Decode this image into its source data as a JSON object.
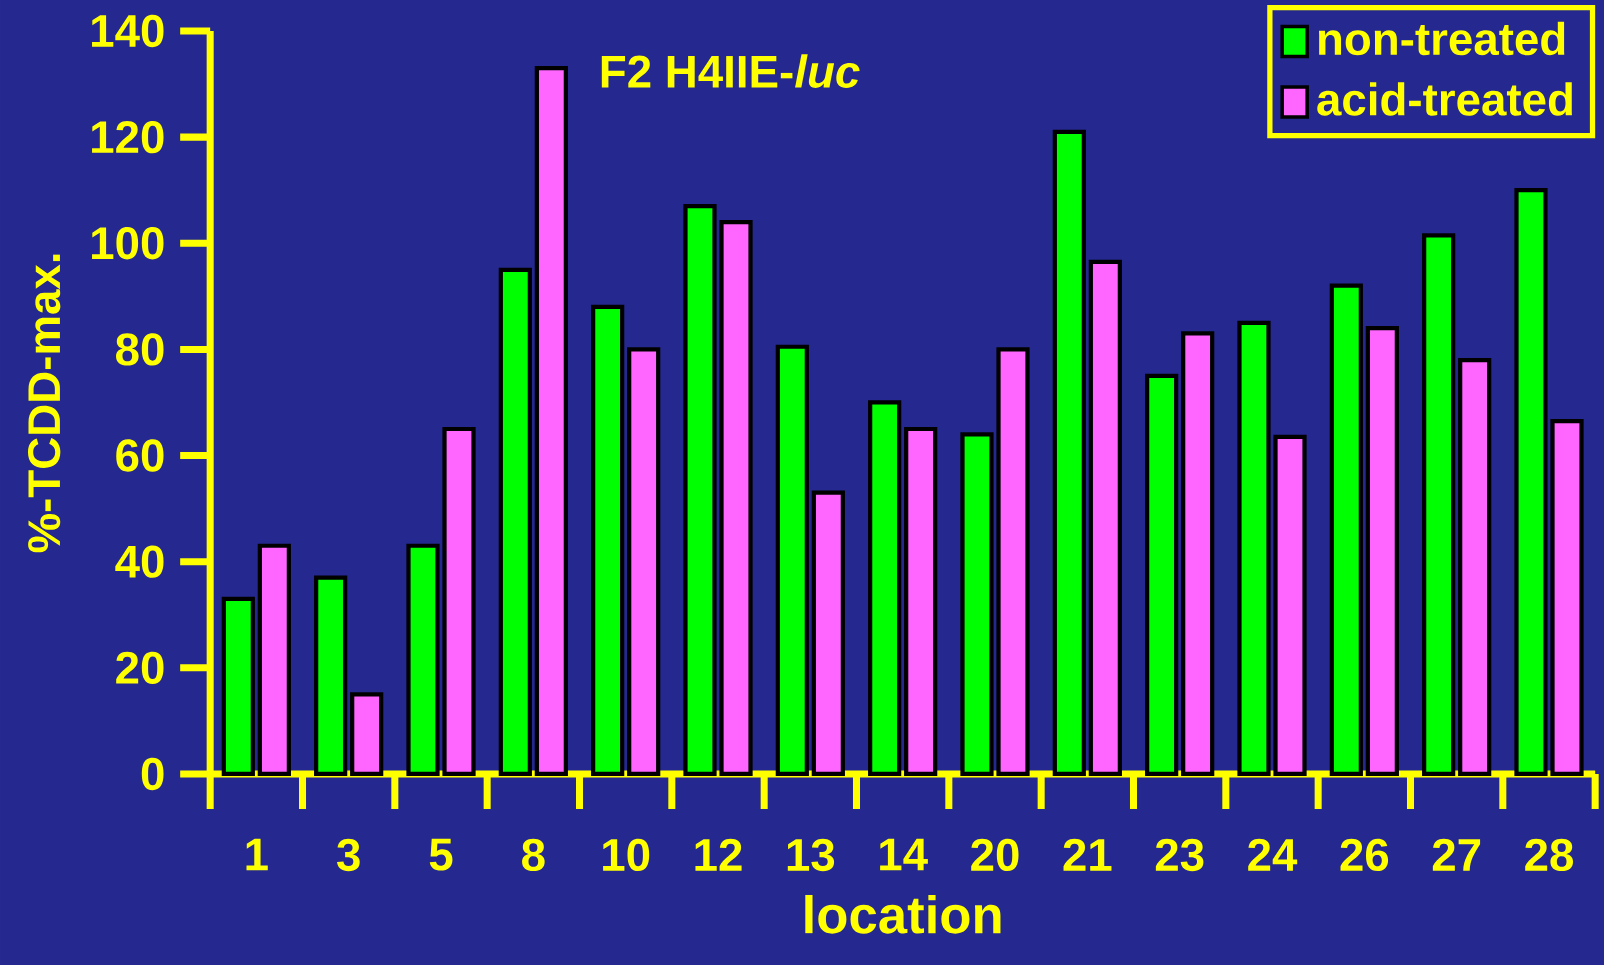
{
  "chart_data": {
    "type": "bar",
    "title": "F2 H4IIE-*luc*",
    "xlabel": "location",
    "ylabel": "%-TCDD-max.",
    "categories": [
      "1",
      "3",
      "5",
      "8",
      "10",
      "12",
      "13",
      "14",
      "20",
      "21",
      "23",
      "24",
      "26",
      "27",
      "28"
    ],
    "series": [
      {
        "name": "non-treated",
        "color": "#00ff00",
        "values": [
          33,
          37,
          43,
          95,
          88,
          107,
          80.5,
          70,
          64,
          121,
          75,
          85,
          92,
          101.5,
          110
        ]
      },
      {
        "name": "acid-treated",
        "color": "#ff66ff",
        "values": [
          43,
          15,
          65,
          133,
          80,
          104,
          53,
          65,
          80,
          96.5,
          83,
          63.5,
          84,
          78,
          66.5
        ]
      }
    ],
    "ylim": [
      0,
      140
    ],
    "yticks": [
      0,
      20,
      40,
      60,
      80,
      100,
      120,
      140
    ],
    "legend": "top right",
    "grid": false
  }
}
